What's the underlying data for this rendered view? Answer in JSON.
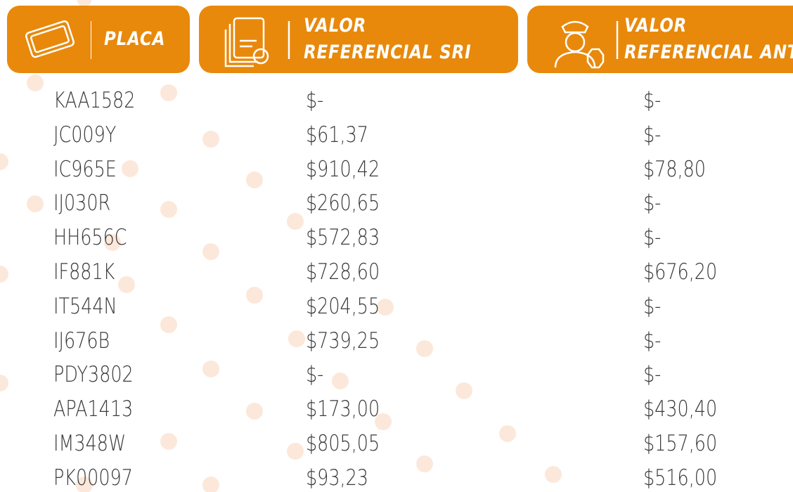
{
  "table": {
    "header": [
      [
        "PLACA"
      ],
      [
        "VALOR",
        "REFERENCIAL SRI"
      ],
      [
        "VALOR",
        "REFERENCIAL ANT"
      ]
    ],
    "rows": [
      [
        "KAA1582",
        "$-",
        "$-"
      ],
      [
        "JC009Y",
        "$61,37",
        "$-"
      ],
      [
        "IC965E",
        "$910,42",
        "$78,80"
      ],
      [
        "IJ030R",
        "$260,65",
        "$-"
      ],
      [
        "HH656C",
        "$572,83",
        "$-"
      ],
      [
        "IF881K",
        "$728,60",
        "$676,20"
      ],
      [
        "IT544N",
        "$204,55",
        "$-"
      ],
      [
        "IJ676B",
        "$739,25",
        "$-"
      ],
      [
        "PDY3802",
        "$-",
        "$-"
      ],
      [
        "APA1413",
        "$173,00",
        "$430,40"
      ],
      [
        "IM348W",
        "$805,05",
        "$157,60"
      ],
      [
        "PK00097",
        "$93,23",
        "$516,00"
      ]
    ]
  }
}
